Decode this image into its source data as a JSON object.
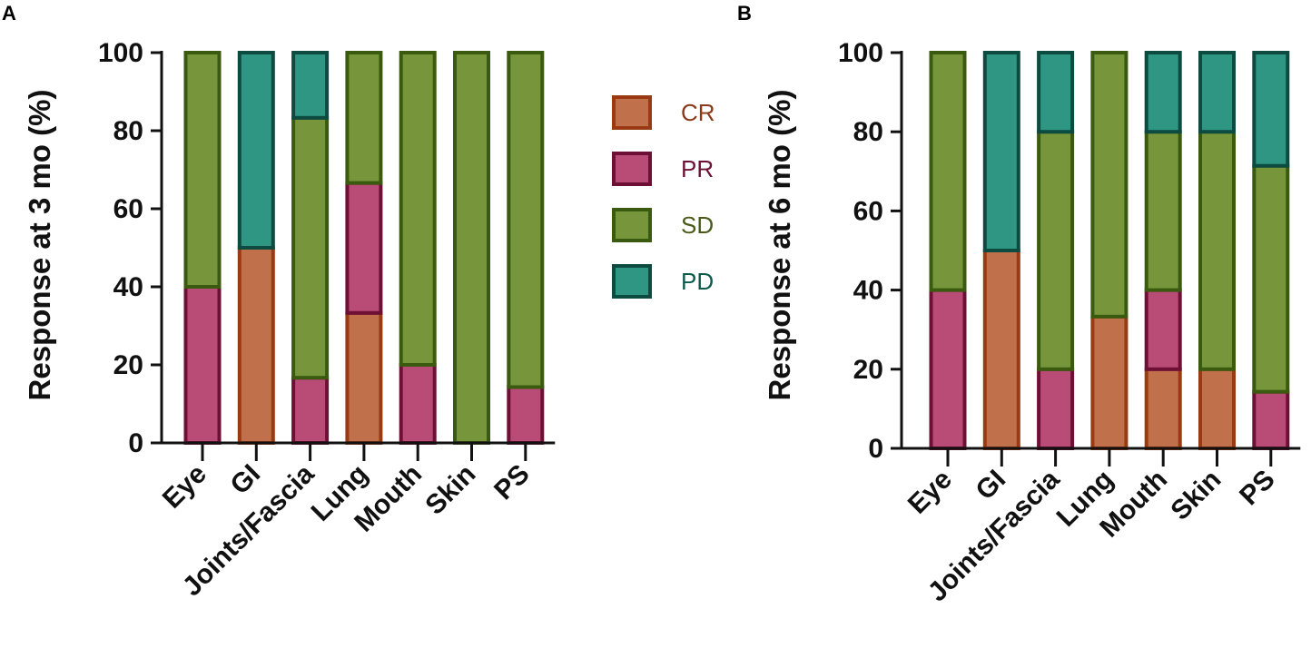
{
  "panels": {
    "A": {
      "letter": "A"
    },
    "B": {
      "letter": "B"
    }
  },
  "colors": {
    "CR": {
      "fill": "#c0704a",
      "stroke": "#9a3a12",
      "text": "#8a3a18"
    },
    "PR": {
      "fill": "#b84c76",
      "stroke": "#6e1036",
      "text": "#6e1036"
    },
    "SD": {
      "fill": "#77953a",
      "stroke": "#3a5a10",
      "text": "#4a5a1a"
    },
    "PD": {
      "fill": "#2e9682",
      "stroke": "#0d4a40",
      "text": "#0d5a4a"
    },
    "axis": "#111111"
  },
  "legend": {
    "entries": [
      {
        "key": "CR",
        "label": "CR"
      },
      {
        "key": "PR",
        "label": "PR"
      },
      {
        "key": "SD",
        "label": "SD"
      },
      {
        "key": "PD",
        "label": "PD"
      }
    ],
    "placement": "between panels"
  },
  "chart_data": [
    {
      "type": "bar",
      "stacked": true,
      "panel": "A",
      "title": "",
      "xlabel": "",
      "ylabel": "Response at 3 mo (%)",
      "ylim": [
        0,
        100
      ],
      "yticks": [
        "0",
        "20",
        "40",
        "60",
        "80",
        "100"
      ],
      "categories": [
        "Eye",
        "GI",
        "Joints/Fascia",
        "Lung",
        "Mouth",
        "Skin",
        "PS"
      ],
      "series": [
        {
          "name": "CR",
          "values": [
            0,
            50,
            0,
            33.3,
            0,
            0,
            0
          ]
        },
        {
          "name": "PR",
          "values": [
            40,
            0,
            16.7,
            33.3,
            20,
            0,
            14.3
          ]
        },
        {
          "name": "SD",
          "values": [
            60,
            0,
            66.6,
            33.4,
            80,
            100,
            85.7
          ]
        },
        {
          "name": "PD",
          "values": [
            0,
            50,
            16.7,
            0,
            0,
            0,
            0
          ]
        }
      ]
    },
    {
      "type": "bar",
      "stacked": true,
      "panel": "B",
      "title": "",
      "xlabel": "",
      "ylabel": "Response at 6 mo (%)",
      "ylim": [
        0,
        100
      ],
      "yticks": [
        "0",
        "20",
        "40",
        "60",
        "80",
        "100"
      ],
      "categories": [
        "Eye",
        "GI",
        "Joints/Fascia",
        "Lung",
        "Mouth",
        "Skin",
        "PS"
      ],
      "series": [
        {
          "name": "CR",
          "values": [
            0,
            50,
            0,
            33.3,
            20,
            20,
            0
          ]
        },
        {
          "name": "PR",
          "values": [
            40,
            0,
            20,
            0,
            20,
            0,
            14.3
          ]
        },
        {
          "name": "SD",
          "values": [
            60,
            0,
            60,
            66.7,
            40,
            60,
            57.1
          ]
        },
        {
          "name": "PD",
          "values": [
            0,
            50,
            20,
            0,
            20,
            20,
            28.6
          ]
        }
      ]
    }
  ]
}
